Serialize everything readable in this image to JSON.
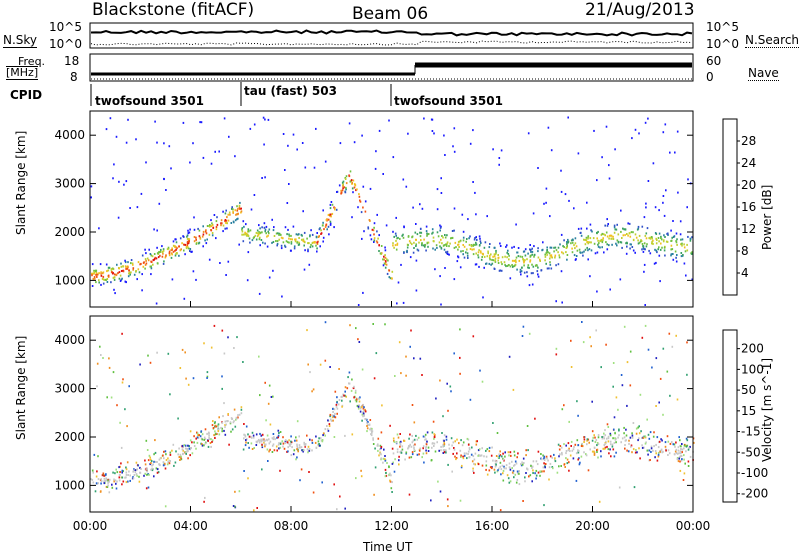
{
  "header": {
    "station": "Blackstone (fitACF)",
    "beam": "Beam 06",
    "date": "21/Aug/2013"
  },
  "noise_panel": {
    "left_label": "N.Sky",
    "right_label": "N.Search",
    "left_ticks": [
      "10^5",
      "10^0"
    ],
    "right_ticks": [
      "10^5",
      "10^0"
    ]
  },
  "freq_panel": {
    "left_label_line1": "Freq.",
    "left_label_line2": "[MHz]",
    "left_ticks": [
      "18",
      "8"
    ],
    "right_label": "Nave",
    "right_ticks": [
      "60",
      "0"
    ]
  },
  "cpid": {
    "label": "CPID",
    "modes": [
      {
        "name": "twofsound 3501",
        "start_hour": 0
      },
      {
        "name": "tau (fast) 503",
        "start_hour": 6
      },
      {
        "name": "twofsound 3501",
        "start_hour": 12
      }
    ]
  },
  "chart_data": [
    {
      "type": "heatmap",
      "title": "",
      "ylabel": "Slant Range [km]",
      "ylim": [
        450,
        4500
      ],
      "yticks": [
        "1000",
        "2000",
        "3000",
        "4000"
      ],
      "colorbar": {
        "label": "Power [dB]",
        "ticks": [
          "4",
          "8",
          "12",
          "16",
          "20",
          "24",
          "28"
        ],
        "colors": [
          "#1a1aff",
          "#3050c8",
          "#2a80a0",
          "#3aa060",
          "#70c040",
          "#c0d030",
          "#f0c020",
          "#f09020",
          "#f05010",
          "#e01010"
        ]
      }
    },
    {
      "type": "heatmap",
      "title": "",
      "ylabel": "Slant Range [km]",
      "xlabel": "Time UT",
      "ylim": [
        450,
        4500
      ],
      "yticks": [
        "1000",
        "2000",
        "3000",
        "4000"
      ],
      "xticks": [
        "00:00",
        "04:00",
        "08:00",
        "12:00",
        "16:00",
        "20:00",
        "00:00"
      ],
      "colorbar": {
        "label": "Velocity [m s^-1]",
        "ticks": [
          "200",
          "100",
          "50",
          "15",
          "-15",
          "-50",
          "-100",
          "-200"
        ],
        "colors": [
          "#2020c0",
          "#2060d0",
          "#30a070",
          "#60c040",
          "#a0e080",
          "#c8c8c8",
          "#f0c030",
          "#f09020",
          "#f05010",
          "#e01010"
        ]
      }
    }
  ]
}
